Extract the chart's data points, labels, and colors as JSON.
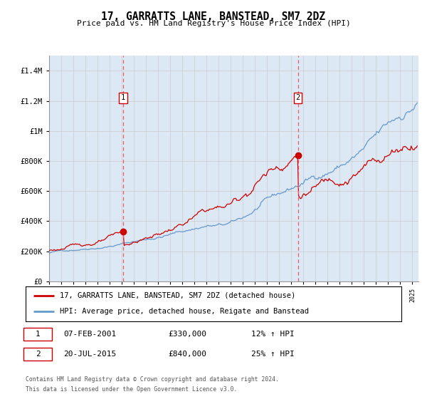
{
  "title": "17, GARRATTS LANE, BANSTEAD, SM7 2DZ",
  "subtitle": "Price paid vs. HM Land Registry's House Price Index (HPI)",
  "background_color": "#ffffff",
  "plot_bg_color": "#dce9f5",
  "red_line_color": "#cc0000",
  "blue_line_color": "#6699cc",
  "grid_color": "#cccccc",
  "marker_color": "#cc0000",
  "vline_color": "#ff5555",
  "annotation_box_color": "#cc0000",
  "sale1_date_num": 2001.1,
  "sale1_label": "1",
  "sale1_price": 330000,
  "sale1_date_str": "07-FEB-2001",
  "sale1_hpi_pct": "12% ↑ HPI",
  "sale2_date_num": 2015.55,
  "sale2_label": "2",
  "sale2_price": 840000,
  "sale2_date_str": "20-JUL-2015",
  "sale2_hpi_pct": "25% ↑ HPI",
  "legend_line1": "17, GARRATTS LANE, BANSTEAD, SM7 2DZ (detached house)",
  "legend_line2": "HPI: Average price, detached house, Reigate and Banstead",
  "footer1": "Contains HM Land Registry data © Crown copyright and database right 2024.",
  "footer2": "This data is licensed under the Open Government Licence v3.0.",
  "ylim_max": 1500000,
  "xmin": 1995.0,
  "xmax": 2025.5
}
